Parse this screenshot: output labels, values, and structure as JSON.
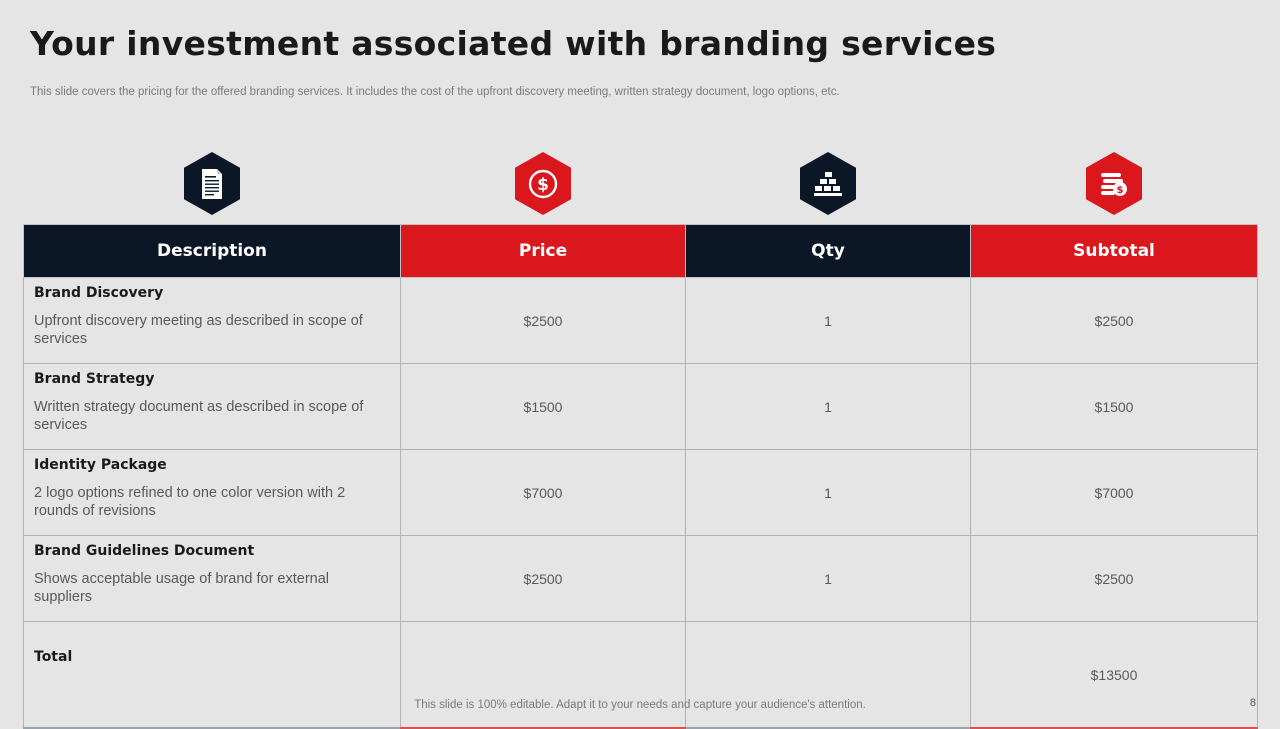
{
  "slide": {
    "title": "Your investment associated with branding services",
    "subtitle": "This slide covers the pricing for the offered branding services. It includes the cost of the upfront discovery meeting, written strategy document, logo options, etc.",
    "footer": "This slide is 100% editable. Adapt it to your needs and capture your audience's attention.",
    "page_number": "8"
  },
  "icons": [
    {
      "name": "document-icon",
      "color": "#0b1727"
    },
    {
      "name": "dollar-coin-icon",
      "color": "#d9171d"
    },
    {
      "name": "money-stack-icon",
      "color": "#0b1727"
    },
    {
      "name": "coins-icon",
      "color": "#d9171d"
    }
  ],
  "colors": {
    "dark": "#0b1727",
    "red": "#d9171d",
    "background": "#e5e5e5"
  },
  "table": {
    "headers": [
      "Description",
      "Price",
      "Qty",
      "Subtotal"
    ],
    "rows": [
      {
        "name": "Brand Discovery",
        "text": "Upfront discovery meeting as described in scope of services",
        "price": "$2500",
        "qty": "1",
        "subtotal": "$2500"
      },
      {
        "name": "Brand Strategy",
        "text": "Written strategy document as described in scope of services",
        "price": "$1500",
        "qty": "1",
        "subtotal": "$1500"
      },
      {
        "name": "Identity Package",
        "text": "2 logo options refined to one color version with 2 rounds of revisions",
        "price": "$7000",
        "qty": "1",
        "subtotal": "$7000"
      },
      {
        "name": "Brand Guidelines Document",
        "text": "Shows acceptable usage of brand for external suppliers",
        "price": "$2500",
        "qty": "1",
        "subtotal": "$2500"
      }
    ],
    "total": {
      "label": "Total",
      "price": "",
      "qty": "",
      "subtotal": "$13500"
    }
  }
}
